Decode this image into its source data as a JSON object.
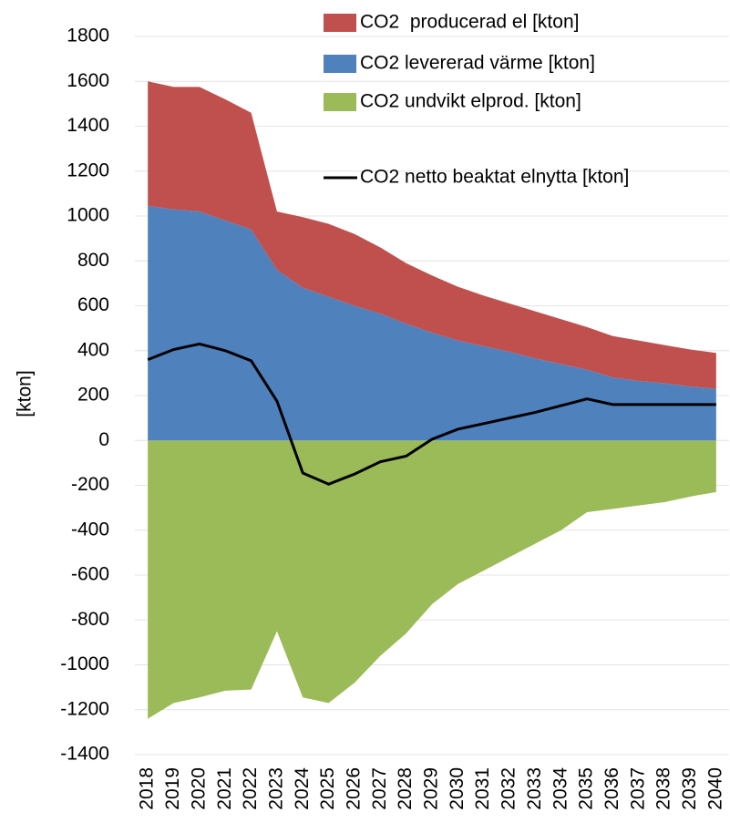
{
  "chart_data": {
    "type": "stacked_area_line",
    "y_label": "[kton]",
    "categories": [
      "2018",
      "2019",
      "2020",
      "2021",
      "2022",
      "2023",
      "2024",
      "2025",
      "2026",
      "2027",
      "2028",
      "2029",
      "2030",
      "2031",
      "2032",
      "2033",
      "2034",
      "2035",
      "2036",
      "2037",
      "2038",
      "2039",
      "2040"
    ],
    "series": [
      {
        "name": "CO2  producerad el [kton]",
        "color": "#c0504d",
        "kind": "area",
        "stack": "pos",
        "values": [
          555,
          545,
          555,
          540,
          520,
          260,
          315,
          325,
          320,
          295,
          270,
          255,
          240,
          225,
          215,
          210,
          200,
          190,
          185,
          180,
          170,
          165,
          160
        ]
      },
      {
        "name": "CO2 levererad värme [kton]",
        "color": "#4f81bd",
        "kind": "area",
        "stack": "pos",
        "values": [
          1045,
          1030,
          1020,
          980,
          940,
          760,
          680,
          640,
          600,
          565,
          520,
          480,
          445,
          420,
          395,
          365,
          340,
          315,
          280,
          265,
          255,
          240,
          230
        ]
      },
      {
        "name": "CO2 undvikt elprod. [kton]",
        "color": "#9bbb59",
        "kind": "area",
        "stack": "neg",
        "values": [
          -1240,
          -1170,
          -1145,
          -1115,
          -1110,
          -850,
          -1145,
          -1170,
          -1080,
          -960,
          -860,
          -730,
          -640,
          -580,
          -520,
          -460,
          -400,
          -320,
          -305,
          -290,
          -275,
          -250,
          -230
        ]
      },
      {
        "name": "CO2 netto beaktat elnytta [kton]",
        "color": "#000000",
        "kind": "line",
        "values": [
          360,
          405,
          430,
          400,
          355,
          175,
          -145,
          -195,
          -150,
          -95,
          -70,
          5,
          50,
          75,
          100,
          125,
          155,
          185,
          160,
          160,
          160,
          160,
          160
        ]
      }
    ],
    "ylim": [
      -1400,
      1800
    ],
    "yticks": [
      -1400,
      -1200,
      -1000,
      -800,
      -600,
      -400,
      -200,
      0,
      200,
      400,
      600,
      800,
      1000,
      1200,
      1400,
      1600,
      1800
    ],
    "grid": true
  }
}
